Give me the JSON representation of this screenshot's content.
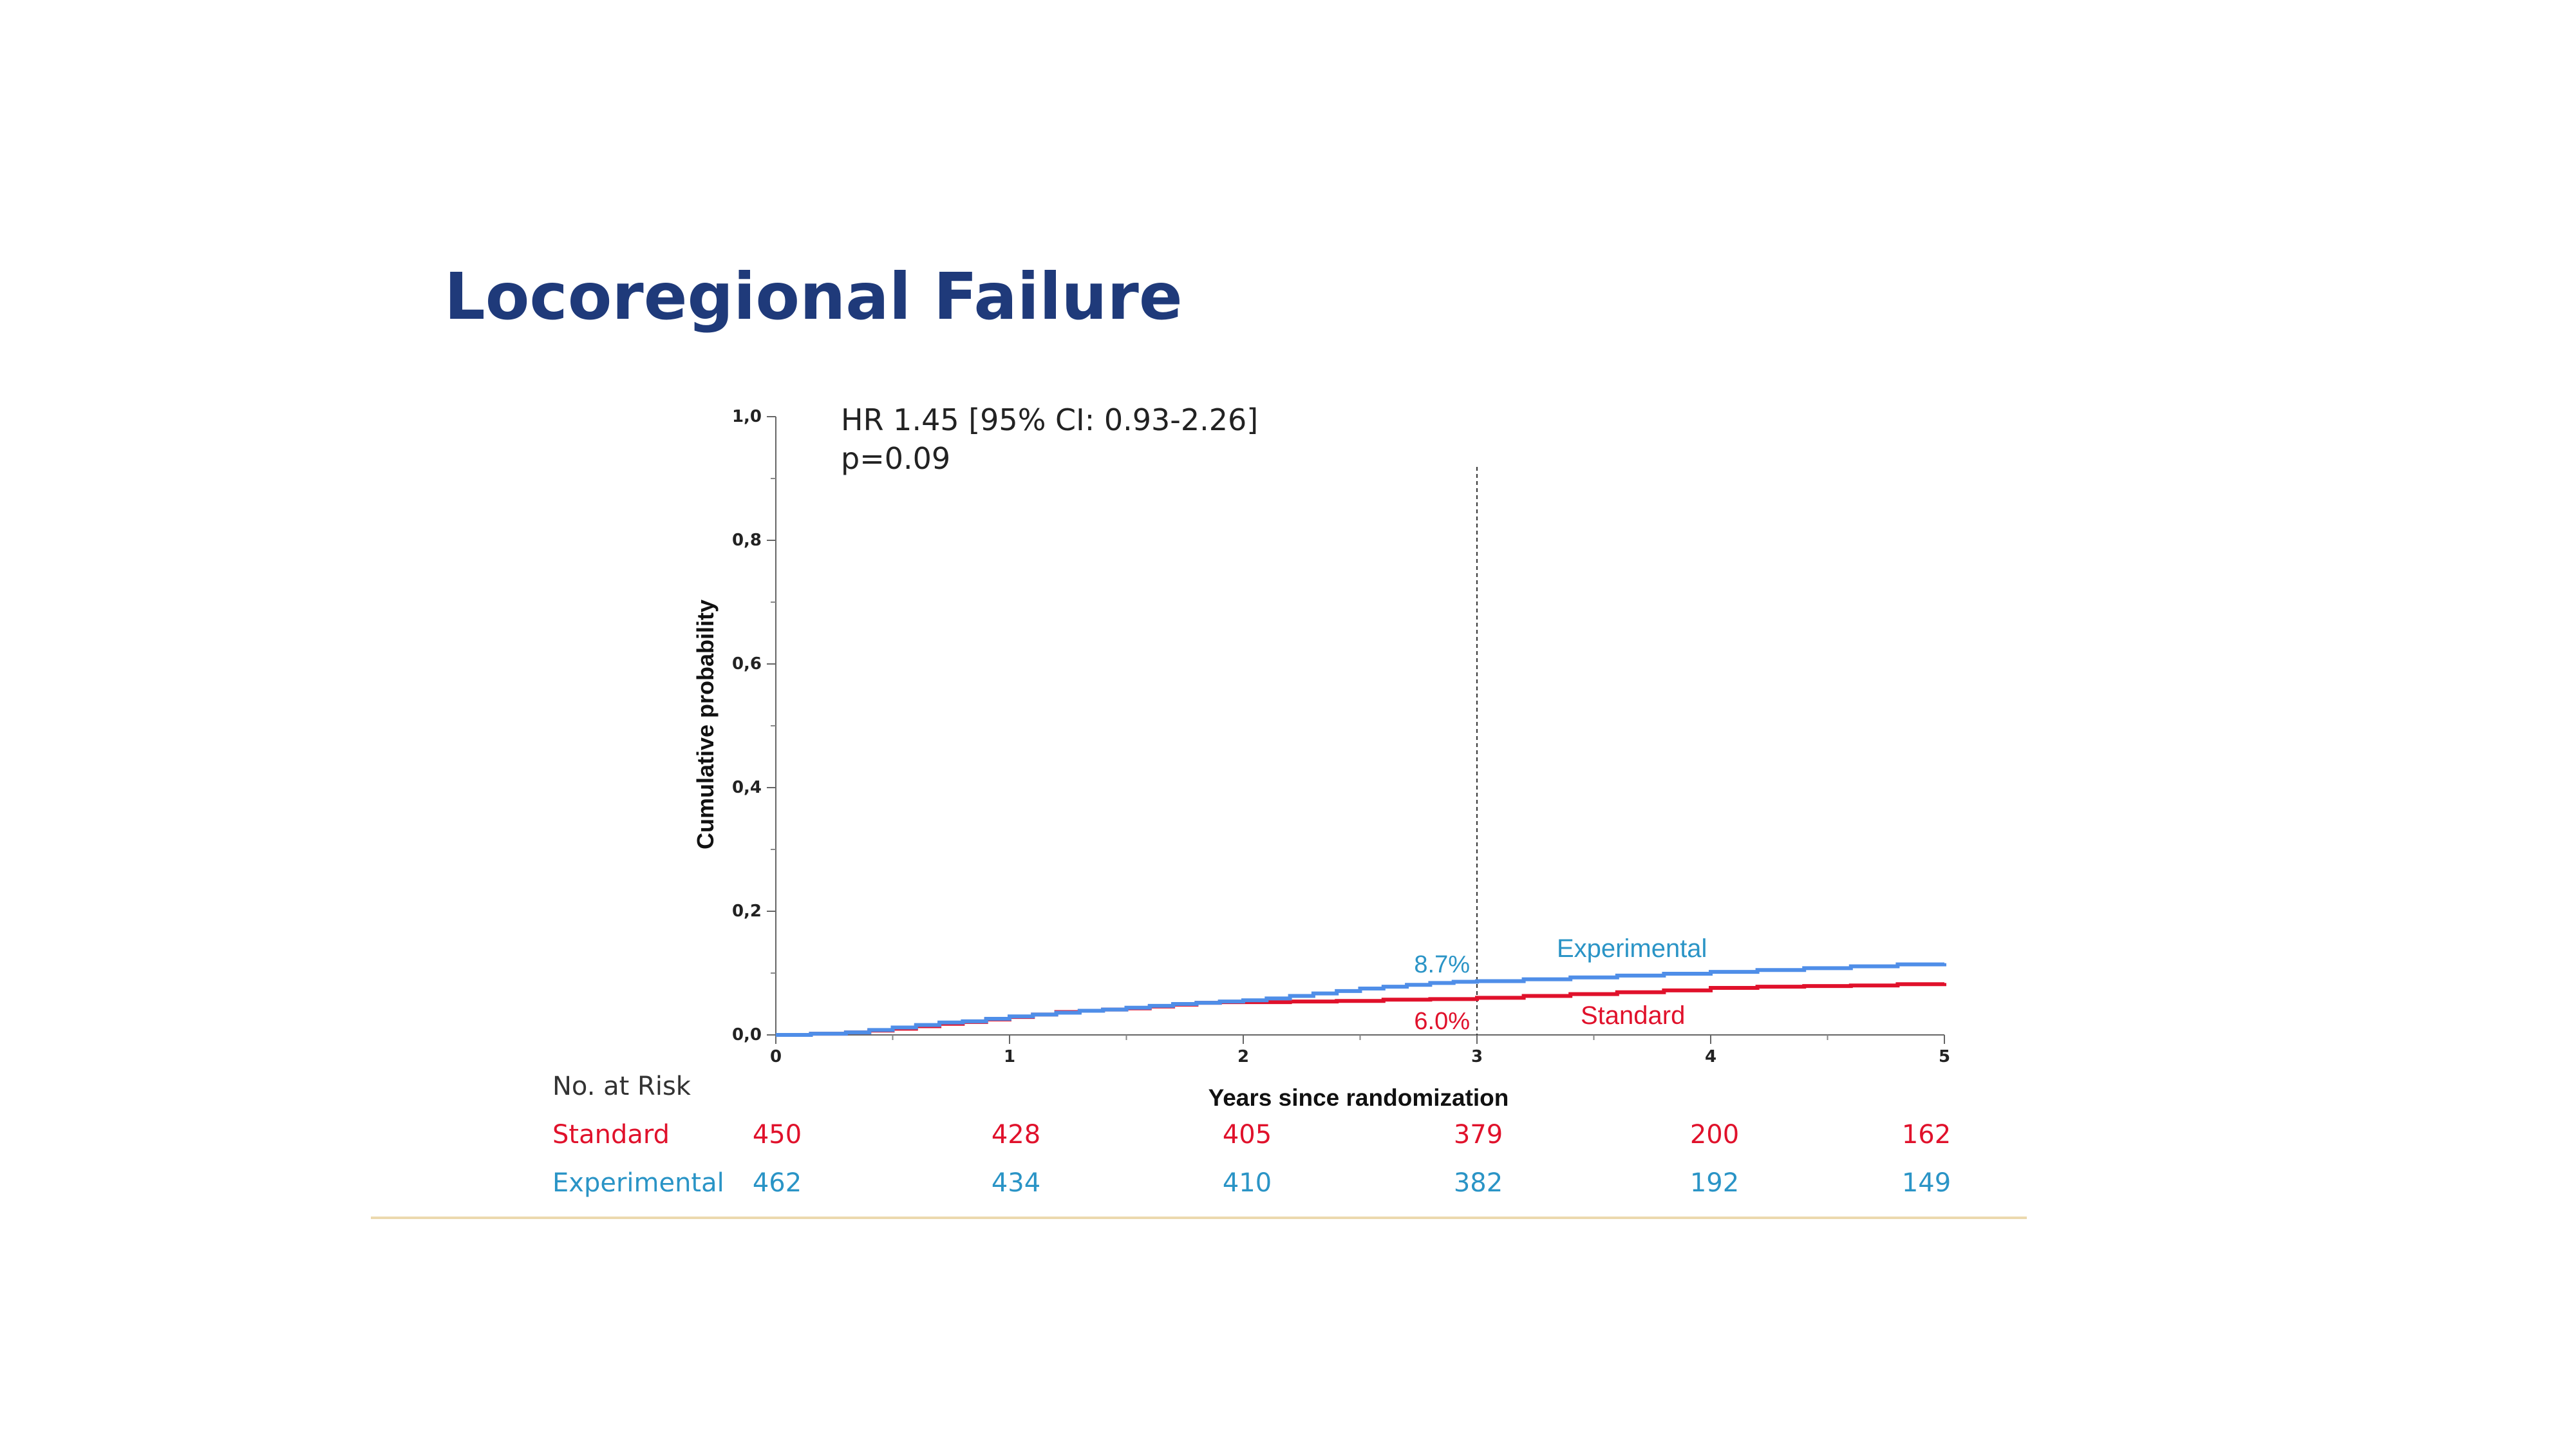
{
  "slide": {
    "title": "Locoregional Failure"
  },
  "colors": {
    "title": "#1f3a7a",
    "standard": "#e0112b",
    "experimental": "#4f8ee8",
    "experimental_label": "#2a94c6",
    "footer_rule": "#ecd9ae"
  },
  "chart_data": {
    "type": "line",
    "chart_style": "kaplan-meier cumulative incidence (step)",
    "xlabel": "Years since randomization",
    "ylabel": "Cumulative probability",
    "xlim": [
      0,
      5
    ],
    "ylim": [
      0,
      1
    ],
    "x_ticks": [
      "0",
      "1",
      "2",
      "3",
      "4",
      "5"
    ],
    "y_ticks": [
      "0,0",
      "0,2",
      "0,4",
      "0,6",
      "0,8",
      "1,0"
    ],
    "grid": false,
    "annotation": {
      "line1": "HR 1.45 [95% CI: 0.93-2.26]",
      "line2": "p=0.09"
    },
    "reference_line": {
      "x": 3,
      "style": "dashed"
    },
    "series": [
      {
        "name": "Experimental",
        "color": "#4f8ee8",
        "x": [
          0,
          0.15,
          0.3,
          0.4,
          0.5,
          0.6,
          0.7,
          0.8,
          0.9,
          1.0,
          1.1,
          1.2,
          1.3,
          1.4,
          1.5,
          1.6,
          1.7,
          1.8,
          1.9,
          2.0,
          2.1,
          2.2,
          2.3,
          2.4,
          2.5,
          2.6,
          2.7,
          2.8,
          2.9,
          3.0,
          3.2,
          3.4,
          3.6,
          3.8,
          4.0,
          4.2,
          4.4,
          4.6,
          4.8,
          5.0
        ],
        "y": [
          0,
          0.002,
          0.004,
          0.008,
          0.012,
          0.016,
          0.02,
          0.022,
          0.026,
          0.03,
          0.033,
          0.036,
          0.039,
          0.041,
          0.044,
          0.047,
          0.05,
          0.052,
          0.054,
          0.056,
          0.059,
          0.063,
          0.067,
          0.071,
          0.075,
          0.078,
          0.081,
          0.084,
          0.086,
          0.087,
          0.09,
          0.093,
          0.096,
          0.099,
          0.102,
          0.105,
          0.108,
          0.111,
          0.114,
          0.116
        ]
      },
      {
        "name": "Standard",
        "color": "#e0112b",
        "x": [
          0,
          0.15,
          0.3,
          0.4,
          0.5,
          0.6,
          0.7,
          0.8,
          0.9,
          1.0,
          1.1,
          1.2,
          1.3,
          1.4,
          1.5,
          1.6,
          1.7,
          1.8,
          1.9,
          2.0,
          2.2,
          2.4,
          2.6,
          2.8,
          3.0,
          3.2,
          3.4,
          3.6,
          3.8,
          4.0,
          4.2,
          4.4,
          4.6,
          4.8,
          5.0
        ],
        "y": [
          0,
          0.002,
          0.004,
          0.007,
          0.01,
          0.014,
          0.018,
          0.021,
          0.025,
          0.029,
          0.033,
          0.037,
          0.039,
          0.041,
          0.043,
          0.046,
          0.049,
          0.052,
          0.053,
          0.053,
          0.054,
          0.055,
          0.057,
          0.058,
          0.06,
          0.063,
          0.066,
          0.069,
          0.072,
          0.076,
          0.078,
          0.079,
          0.08,
          0.082,
          0.084
        ]
      }
    ],
    "data_labels": {
      "experimental_at_3": "8.7%",
      "standard_at_3": "6.0%"
    },
    "legend": {
      "experimental": "Experimental",
      "standard": "Standard",
      "placement": "inline at right end of curves"
    }
  },
  "risk_table": {
    "header": "No. at Risk",
    "rows": [
      {
        "label": "Standard",
        "values": [
          "450",
          "428",
          "405",
          "379",
          "200",
          "162"
        ]
      },
      {
        "label": "Experimental",
        "values": [
          "462",
          "434",
          "410",
          "382",
          "192",
          "149"
        ]
      }
    ]
  }
}
